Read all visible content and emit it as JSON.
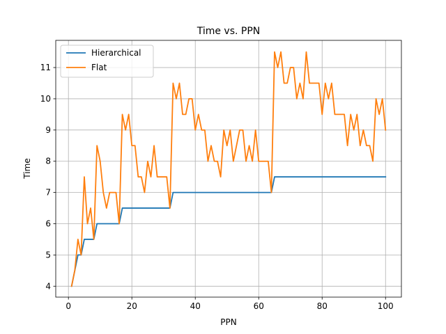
{
  "chart_data": {
    "type": "line",
    "title": "Time vs. PPN",
    "xlabel": "PPN",
    "ylabel": "Time",
    "xlim": [
      -4,
      105
    ],
    "ylim": [
      3.65,
      11.87
    ],
    "xticks": [
      0,
      20,
      40,
      60,
      80,
      100
    ],
    "yticks": [
      4,
      5,
      6,
      7,
      8,
      9,
      10,
      11
    ],
    "grid": true,
    "legend_position": "top-left",
    "series": [
      {
        "name": "Hierarchical",
        "color": "#1f77b4",
        "x": [
          1,
          2,
          3,
          4,
          5,
          6,
          7,
          8,
          9,
          10,
          11,
          12,
          13,
          14,
          15,
          16,
          17,
          18,
          19,
          20,
          21,
          22,
          23,
          24,
          25,
          26,
          27,
          28,
          29,
          30,
          31,
          32,
          33,
          34,
          35,
          36,
          37,
          38,
          39,
          40,
          41,
          42,
          43,
          44,
          45,
          46,
          47,
          48,
          49,
          50,
          51,
          52,
          53,
          54,
          55,
          56,
          57,
          58,
          59,
          60,
          61,
          62,
          63,
          64,
          65,
          66,
          67,
          68,
          69,
          70,
          71,
          72,
          73,
          74,
          75,
          76,
          77,
          78,
          79,
          80,
          81,
          82,
          83,
          84,
          85,
          86,
          87,
          88,
          89,
          90,
          91,
          92,
          93,
          94,
          95,
          96,
          97,
          98,
          99,
          100
        ],
        "y": [
          4,
          4.5,
          5,
          5,
          5.5,
          5.5,
          5.5,
          5.5,
          6,
          6,
          6,
          6,
          6,
          6,
          6,
          6,
          6.5,
          6.5,
          6.5,
          6.5,
          6.5,
          6.5,
          6.5,
          6.5,
          6.5,
          6.5,
          6.5,
          6.5,
          6.5,
          6.5,
          6.5,
          6.5,
          7,
          7,
          7,
          7,
          7,
          7,
          7,
          7,
          7,
          7,
          7,
          7,
          7,
          7,
          7,
          7,
          7,
          7,
          7,
          7,
          7,
          7,
          7,
          7,
          7,
          7,
          7,
          7,
          7,
          7,
          7,
          7,
          7.5,
          7.5,
          7.5,
          7.5,
          7.5,
          7.5,
          7.5,
          7.5,
          7.5,
          7.5,
          7.5,
          7.5,
          7.5,
          7.5,
          7.5,
          7.5,
          7.5,
          7.5,
          7.5,
          7.5,
          7.5,
          7.5,
          7.5,
          7.5,
          7.5,
          7.5,
          7.5,
          7.5,
          7.5,
          7.5,
          7.5,
          7.5,
          7.5,
          7.5,
          7.5,
          7.5
        ]
      },
      {
        "name": "Flat",
        "color": "#ff7f0e",
        "x": [
          1,
          2,
          3,
          4,
          5,
          6,
          7,
          8,
          9,
          10,
          11,
          12,
          13,
          14,
          15,
          16,
          17,
          18,
          19,
          20,
          21,
          22,
          23,
          24,
          25,
          26,
          27,
          28,
          29,
          30,
          31,
          32,
          33,
          34,
          35,
          36,
          37,
          38,
          39,
          40,
          41,
          42,
          43,
          44,
          45,
          46,
          47,
          48,
          49,
          50,
          51,
          52,
          53,
          54,
          55,
          56,
          57,
          58,
          59,
          60,
          61,
          62,
          63,
          64,
          65,
          66,
          67,
          68,
          69,
          70,
          71,
          72,
          73,
          74,
          75,
          76,
          77,
          78,
          79,
          80,
          81,
          82,
          83,
          84,
          85,
          86,
          87,
          88,
          89,
          90,
          91,
          92,
          93,
          94,
          95,
          96,
          97,
          98,
          99,
          100
        ],
        "y": [
          4,
          4.5,
          5.5,
          5,
          7.5,
          6,
          6.5,
          5.5,
          8.5,
          8,
          7,
          6.5,
          7,
          7,
          7,
          6,
          9.5,
          9,
          9.5,
          8.5,
          8.5,
          7.5,
          7.5,
          7,
          8,
          7.5,
          8.5,
          7.5,
          7.5,
          7.5,
          7.5,
          6.5,
          10.5,
          10,
          10.5,
          9.5,
          9.5,
          10,
          10,
          9,
          9.5,
          9,
          9,
          8,
          8.5,
          8,
          8,
          7.5,
          9,
          8.5,
          9,
          8,
          8.5,
          9,
          9,
          8,
          8.5,
          8,
          9,
          8,
          8,
          8,
          8,
          7,
          11.5,
          11,
          11.5,
          10.5,
          10.5,
          11,
          11,
          10,
          10.5,
          10,
          11.5,
          10.5,
          10.5,
          10.5,
          10.5,
          9.5,
          10.5,
          10,
          10.5,
          9.5,
          9.5,
          9.5,
          9.5,
          8.5,
          9.5,
          9,
          9.5,
          8.5,
          9,
          8.5,
          8.5,
          8,
          10,
          9.5,
          10,
          9
        ]
      }
    ]
  }
}
